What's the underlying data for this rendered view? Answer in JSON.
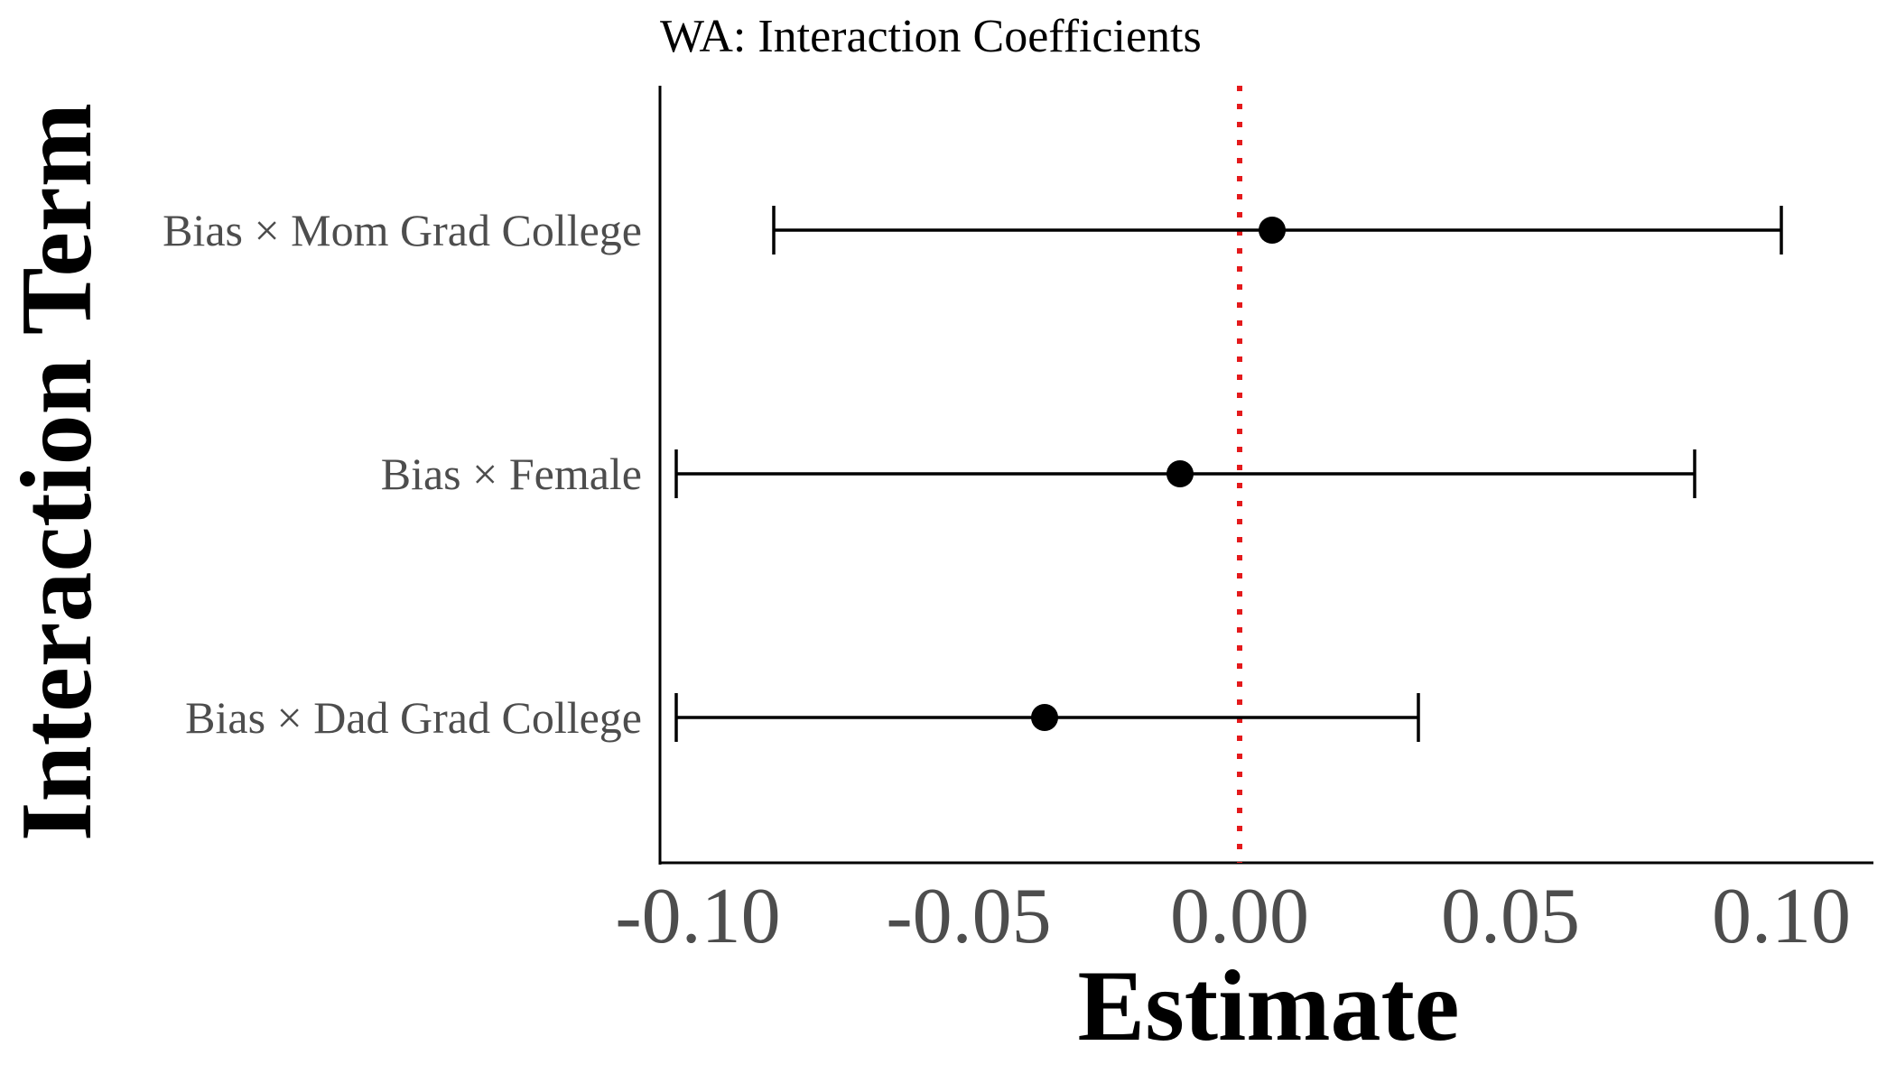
{
  "chart_data": {
    "type": "scatter",
    "subtype": "coefficient-plot-with-error-bars",
    "title": "WA: Interaction Coefficients",
    "xlabel": "Estimate",
    "ylabel": "Interaction Term",
    "xlim": [
      -0.107,
      0.117
    ],
    "xticks": [
      -0.1,
      -0.05,
      0.0,
      0.05,
      0.1
    ],
    "xtick_labels": [
      "-0.10",
      "-0.05",
      "0.00",
      "0.05",
      "0.10"
    ],
    "reference_line": {
      "x": 0.0,
      "style": "dotted",
      "color": "#e41a1c"
    },
    "grid": false,
    "legend": "none",
    "point_color": "#000000",
    "points": [
      {
        "term": "Bias × Mom Grad College",
        "estimate": 0.006,
        "ci_low": -0.086,
        "ci_high": 0.1
      },
      {
        "term": "Bias × Female",
        "estimate": -0.011,
        "ci_low": -0.104,
        "ci_high": 0.084
      },
      {
        "term": "Bias × Dad Grad College",
        "estimate": -0.036,
        "ci_low": -0.104,
        "ci_high": 0.033
      }
    ]
  }
}
